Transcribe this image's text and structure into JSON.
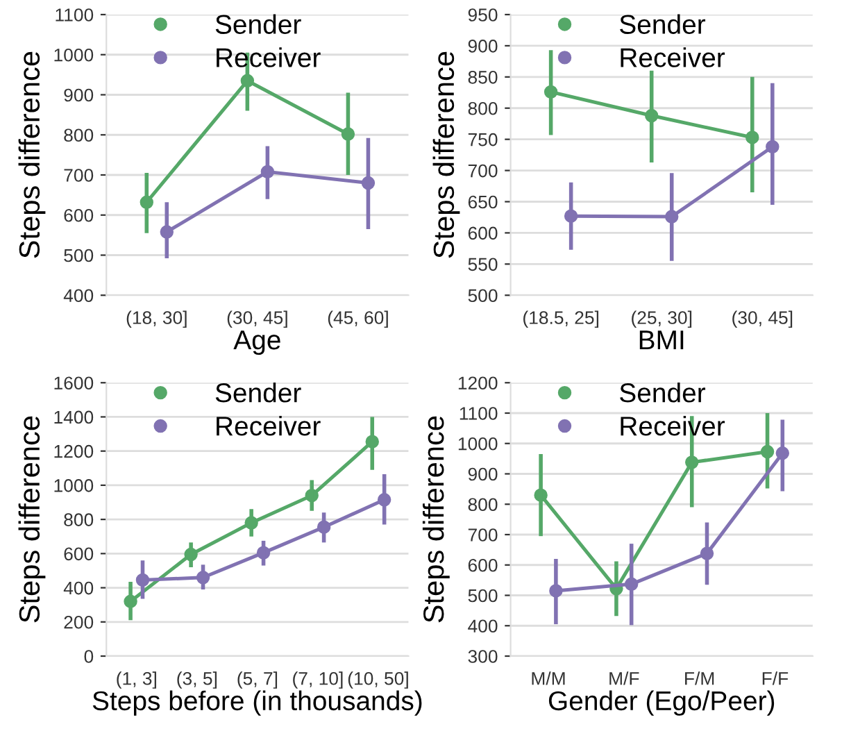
{
  "chart_data": [
    {
      "type": "line",
      "xlabel": "Age",
      "ylabel": "Steps difference",
      "categories": [
        "(18, 30]",
        "(30, 45]",
        "(45, 60]"
      ],
      "ylim": [
        400,
        1100
      ],
      "yticks": [
        400,
        500,
        600,
        700,
        800,
        900,
        1000,
        1100
      ],
      "grid": "y",
      "legend": "top",
      "marker": "circle",
      "series": [
        {
          "name": "Sender",
          "color": "#55a868",
          "values": [
            632,
            935,
            802
          ],
          "errors": [
            [
              555,
              705
            ],
            [
              860,
              1005
            ],
            [
              700,
              905
            ]
          ]
        },
        {
          "name": "Receiver",
          "color": "#8172b2",
          "values": [
            558,
            708,
            680
          ],
          "errors": [
            [
              492,
              632
            ],
            [
              640,
              772
            ],
            [
              565,
              792
            ]
          ]
        }
      ]
    },
    {
      "type": "line",
      "xlabel": "BMI",
      "ylabel": "Steps difference",
      "categories": [
        "(18.5, 25]",
        "(25, 30]",
        "(30, 45]"
      ],
      "ylim": [
        500,
        950
      ],
      "yticks": [
        500,
        550,
        600,
        650,
        700,
        750,
        800,
        850,
        900,
        950
      ],
      "grid": "y",
      "legend": "top",
      "marker": "circle",
      "series": [
        {
          "name": "Sender",
          "color": "#55a868",
          "values": [
            826,
            788,
            753
          ],
          "errors": [
            [
              757,
              893
            ],
            [
              713,
              860
            ],
            [
              665,
              850
            ]
          ]
        },
        {
          "name": "Receiver",
          "color": "#8172b2",
          "values": [
            627,
            626,
            738
          ],
          "errors": [
            [
              573,
              681
            ],
            [
              555,
              696
            ],
            [
              645,
              840
            ]
          ]
        }
      ]
    },
    {
      "type": "line",
      "xlabel": "Steps before (in thousands)",
      "ylabel": "Steps difference",
      "categories": [
        "(1, 3]",
        "(3, 5]",
        "(5, 7]",
        "(7, 10]",
        "(10, 50]"
      ],
      "ylim": [
        0,
        1600
      ],
      "yticks": [
        0,
        200,
        400,
        600,
        800,
        1000,
        1200,
        1400,
        1600
      ],
      "grid": "y",
      "legend": "top",
      "marker": "circle",
      "series": [
        {
          "name": "Sender",
          "color": "#55a868",
          "values": [
            320,
            595,
            780,
            940,
            1255
          ],
          "errors": [
            [
              210,
              435
            ],
            [
              520,
              665
            ],
            [
              700,
              860
            ],
            [
              850,
              1030
            ],
            [
              1090,
              1400
            ]
          ]
        },
        {
          "name": "Receiver",
          "color": "#8172b2",
          "values": [
            445,
            460,
            605,
            755,
            915
          ],
          "errors": [
            [
              335,
              560
            ],
            [
              390,
              535
            ],
            [
              530,
              675
            ],
            [
              665,
              840
            ],
            [
              770,
              1065
            ]
          ]
        }
      ]
    },
    {
      "type": "line",
      "xlabel": "Gender (Ego/Peer)",
      "ylabel": "Steps difference",
      "categories": [
        "M/M",
        "M/F",
        "F/M",
        "F/F"
      ],
      "ylim": [
        300,
        1200
      ],
      "yticks": [
        300,
        400,
        500,
        600,
        700,
        800,
        900,
        1000,
        1100,
        1200
      ],
      "grid": "y",
      "legend": "top",
      "marker": "circle",
      "series": [
        {
          "name": "Sender",
          "color": "#55a868",
          "values": [
            830,
            522,
            938,
            973
          ],
          "errors": [
            [
              695,
              965
            ],
            [
              432,
              612
            ],
            [
              790,
              1090
            ],
            [
              852,
              1100
            ]
          ]
        },
        {
          "name": "Receiver",
          "color": "#8172b2",
          "values": [
            515,
            537,
            638,
            968
          ],
          "errors": [
            [
              405,
              620
            ],
            [
              402,
              670
            ],
            [
              535,
              740
            ],
            [
              843,
              1078
            ]
          ]
        }
      ]
    }
  ]
}
